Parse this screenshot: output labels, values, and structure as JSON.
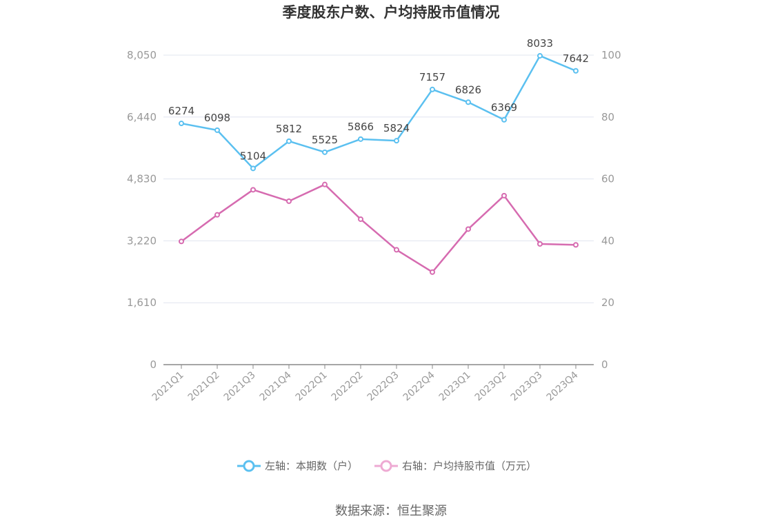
{
  "chart_data": {
    "type": "line",
    "title": "季度股东户数、户均持股市值情况",
    "categories": [
      "2021Q1",
      "2021Q2",
      "2021Q3",
      "2021Q4",
      "2022Q1",
      "2022Q2",
      "2022Q3",
      "2022Q4",
      "2023Q1",
      "2023Q2",
      "2023Q3",
      "2023Q4"
    ],
    "y_left": {
      "min": 0,
      "max": 8050,
      "ticks": [
        "0",
        "1,610",
        "3,220",
        "4,830",
        "6,440",
        "8,050"
      ]
    },
    "y_right": {
      "min": 0,
      "max": 100,
      "ticks": [
        "0",
        "20",
        "40",
        "60",
        "80",
        "100"
      ]
    },
    "series": [
      {
        "name": "左轴：本期数（户）",
        "axis": "left",
        "color": "#5bc0f0",
        "values": [
          6274,
          6098,
          5104,
          5812,
          5525,
          5866,
          5824,
          7157,
          6826,
          6369,
          8033,
          7642
        ],
        "labels": [
          "6274",
          "6098",
          "5104",
          "5812",
          "5525",
          "5866",
          "5824",
          "7157",
          "6826",
          "6369",
          "8033",
          "7642"
        ]
      },
      {
        "name": "右轴：户均持股市值（万元）",
        "axis": "right",
        "color": "#d66bb0",
        "values": [
          39.8,
          48.4,
          56.5,
          52.8,
          58.2,
          47.0,
          37.1,
          29.9,
          43.8,
          54.6,
          39.0,
          38.7
        ]
      }
    ],
    "legend_position": "bottom",
    "grid": true
  },
  "source": "数据来源：恒生聚源"
}
